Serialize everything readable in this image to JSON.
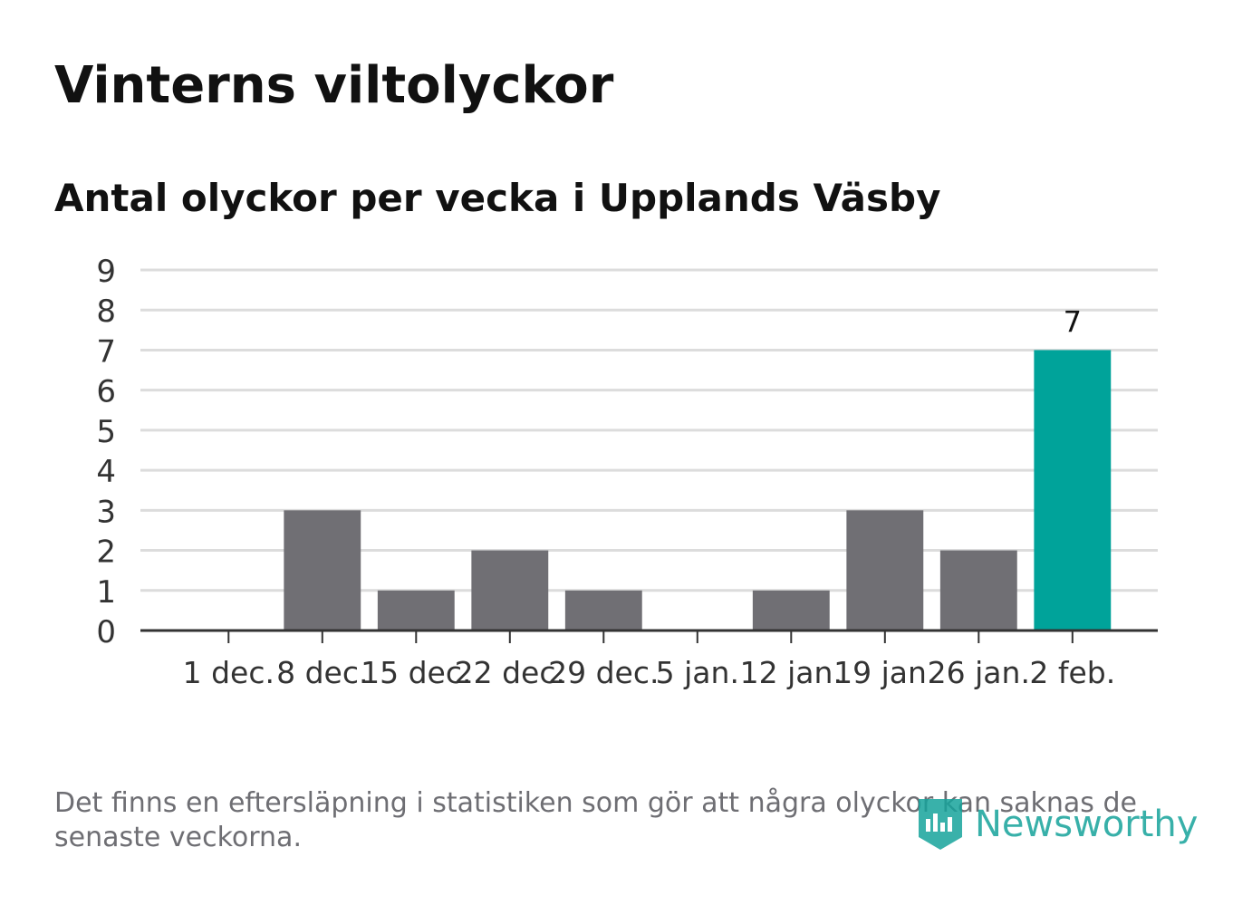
{
  "title": "Vinterns viltolyckor",
  "subtitle": "Antal olyckor per vecka i Upplands Väsby",
  "footnote": "Det finns en eftersläpning i statistiken som gör att några olyckor kan saknas de senaste veckorna.",
  "brand": {
    "name": "Newsworthy",
    "icon": "newsworthy-logo-icon",
    "color": "#16a39b"
  },
  "colors": {
    "bar": "#706f74",
    "highlight": "#00a39a",
    "grid": "#dcdcdc",
    "axis": "#333333",
    "text": "#333333"
  },
  "chart_data": {
    "type": "bar",
    "title": "Antal olyckor per vecka i Upplands Väsby",
    "xlabel": "",
    "ylabel": "",
    "categories": [
      "1 dec.",
      "8 dec.",
      "15 dec.",
      "22 dec.",
      "29 dec.",
      "5 jan.",
      "12 jan.",
      "19 jan.",
      "26 jan.",
      "2 feb."
    ],
    "values": [
      0,
      3,
      1,
      2,
      1,
      0,
      1,
      3,
      2,
      7
    ],
    "highlight_index": 9,
    "data_labels": [
      {
        "index": 9,
        "text": "7"
      }
    ],
    "ylim": [
      0,
      9
    ],
    "yticks": [
      "0",
      "1",
      "2",
      "3",
      "4",
      "5",
      "6",
      "7",
      "8",
      "9"
    ],
    "grid": true,
    "legend": "none"
  }
}
